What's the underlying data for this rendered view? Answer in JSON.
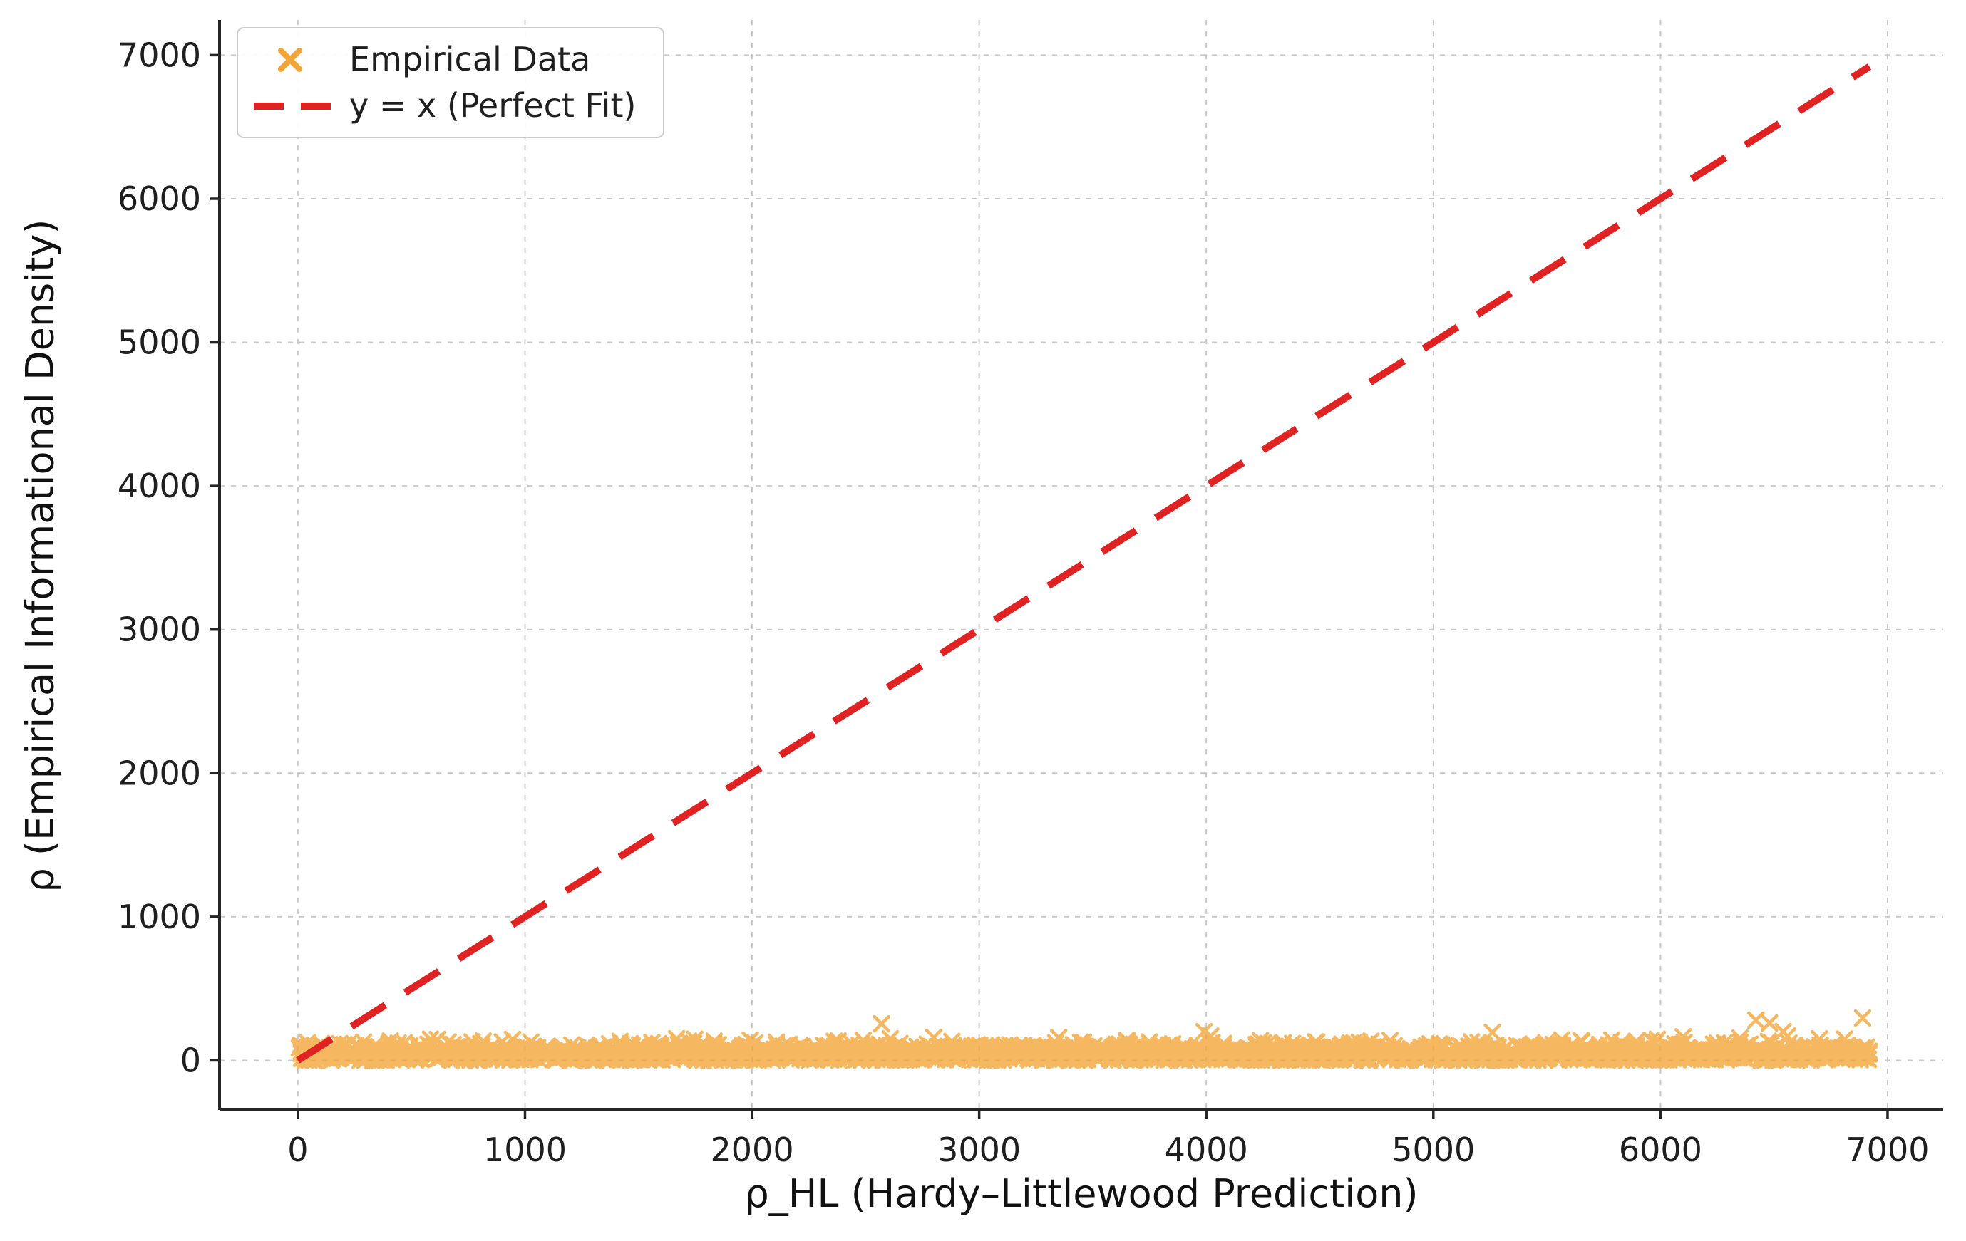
{
  "figure": {
    "background": "#ffffff",
    "text_color": "#1f1f1f",
    "spine_color": "#262626"
  },
  "chart_data": {
    "type": "scatter",
    "title": "",
    "xlabel": "ρ_HL (Hardy–Littlewood Prediction)",
    "ylabel": "ρ (Empirical Informational Density)",
    "xlim": [
      -345,
      7245
    ],
    "ylim": [
      -345,
      7245
    ],
    "x_ticks": [
      0,
      1000,
      2000,
      3000,
      4000,
      5000,
      6000,
      7000
    ],
    "y_ticks": [
      0,
      1000,
      2000,
      3000,
      4000,
      5000,
      6000,
      7000
    ],
    "grid": {
      "visible": true,
      "color": "#c9c9c9",
      "dash": [
        7,
        9
      ],
      "width": 2
    },
    "legend": {
      "position": "upper-left",
      "entries": [
        {
          "label": "Empirical Data",
          "marker": "x",
          "color": "#f2a63a"
        },
        {
          "label": "y = x (Perfect Fit)",
          "marker": "dashed-line",
          "color": "#e02222"
        }
      ]
    },
    "series": [
      {
        "name": "Empirical Data",
        "type": "scatter",
        "marker": "x",
        "color": "#f2a63a",
        "opacity": 0.8,
        "band": {
          "description": "dense horizontal band of points hugging y≈0–160 across full x range",
          "x_min": 0,
          "x_max": 6920,
          "count": 2600,
          "y_mean": 45,
          "y_sd": 38,
          "y_min": 1,
          "y_max": 160,
          "seed": 42
        },
        "outliers": [
          [
            2570,
            255
          ],
          [
            2800,
            160
          ],
          [
            3650,
            140
          ],
          [
            3990,
            200
          ],
          [
            4020,
            170
          ],
          [
            5260,
            195
          ],
          [
            6100,
            165
          ],
          [
            6350,
            155
          ],
          [
            6420,
            280
          ],
          [
            6480,
            260
          ],
          [
            6540,
            200
          ],
          [
            6560,
            170
          ],
          [
            6700,
            150
          ],
          [
            6890,
            295
          ]
        ]
      },
      {
        "name": "y = x (Perfect Fit)",
        "type": "line",
        "style": "dashed",
        "color": "#e02222",
        "width": 10,
        "points": [
          [
            0,
            0
          ],
          [
            6920,
            6920
          ]
        ]
      }
    ]
  }
}
